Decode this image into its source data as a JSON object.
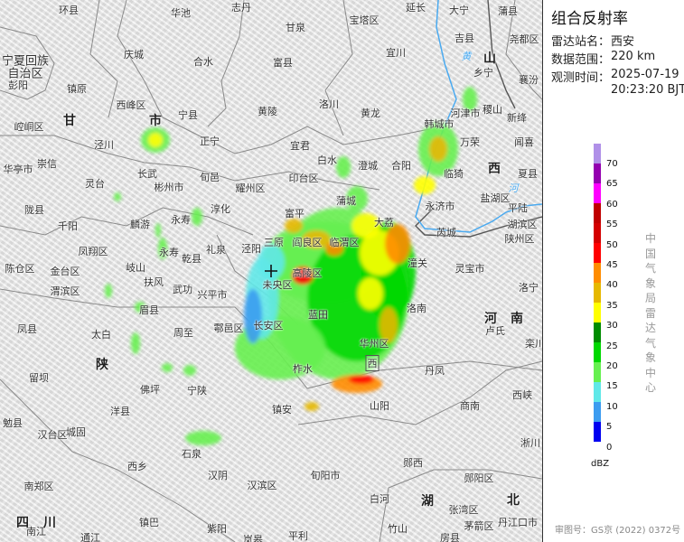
{
  "panel": {
    "title": "组合反射率",
    "station_label": "雷达站名：",
    "station": "西安",
    "range_label": "数据范围：",
    "range": "220 km",
    "time_label": "观测时间：",
    "date": "2025-07-19",
    "time": "20:23:20 BJT",
    "legend": {
      "unit": "dBZ",
      "ticks": [
        "70",
        "65",
        "60",
        "55",
        "50",
        "45",
        "40",
        "35",
        "30",
        "25",
        "20",
        "15",
        "10",
        "5",
        "0"
      ],
      "colors": [
        "#b090e8",
        "#9400b0",
        "#ff00ff",
        "#c00000",
        "#d40000",
        "#ff0000",
        "#ff8c00",
        "#e6b800",
        "#ffff00",
        "#008c00",
        "#00d800",
        "#66f050",
        "#60e8e8",
        "#3c9cf0",
        "#0000f0"
      ]
    },
    "credit": "中国气象局雷达气象中心",
    "map_review_number": "审图号：GS京 (2022) 0372号"
  },
  "map": {
    "radar_site_icon": "crosshair-icon",
    "river_color": "#4aaaf0",
    "labels": [
      "环县",
      "华池",
      "志丹",
      "延长",
      "大宁",
      "蒲县",
      "甘泉",
      "宝塔区",
      "庆城",
      "合水",
      "吉县",
      "尧都区",
      "富县",
      "宜川",
      "彭阳",
      "镇原",
      "乡宁",
      "襄汾",
      "西峰区",
      "宁县",
      "黄陵",
      "洛川",
      "黄龙",
      "稷山",
      "新绛",
      "崆峒区",
      "正宁",
      "泾川",
      "宜君",
      "韩城市",
      "河津市",
      "万荣",
      "闻喜",
      "华亭市",
      "崇信",
      "长武",
      "旬邑",
      "耀州区",
      "印台区",
      "白水",
      "澄城",
      "合阳",
      "临猗",
      "夏县",
      "灵台",
      "彬州市",
      "盐湖区",
      "陇县",
      "淳化",
      "永寿",
      "蒲城",
      "富平",
      "永济市",
      "平陆",
      "千阳",
      "麟游",
      "大荔",
      "湖滨区",
      "凤翔区",
      "永寿",
      "乾县",
      "礼泉",
      "泾阳",
      "三原",
      "阎良区",
      "临渭区",
      "芮城",
      "陕州区",
      "潼关",
      "陈仓区",
      "金台区",
      "岐山",
      "扶风",
      "武功",
      "兴平市",
      "未央区",
      "高陵区",
      "灵宝市",
      "渭滨区",
      "洛南",
      "洛宁",
      "蓝田",
      "长安区",
      "鄠邑区",
      "眉县",
      "周至",
      "凤县",
      "太白",
      "卢氏",
      "栾川",
      "华州区",
      "柞水",
      "丹凤",
      "留坝",
      "佛坪",
      "宁陕",
      "镇安",
      "山阳",
      "商南",
      "西峡",
      "洋县",
      "勉县",
      "汉台区",
      "城固",
      "石泉",
      "淅川",
      "郧西",
      "西乡",
      "汉阴",
      "汉滨区",
      "旬阳市",
      "郧阳区",
      "南郑区",
      "白河",
      "张湾区",
      "南江",
      "镇巴",
      "紫阳",
      "竹山",
      "茅箭区",
      "丹江口市",
      "平利",
      "房县",
      "通江",
      "岚皋"
    ],
    "regions": [
      "宁夏回族",
      "自治区"
    ],
    "provinces": [
      "甘",
      "山",
      "西",
      "陕",
      "河",
      "南",
      "湖",
      "北",
      "四",
      "川",
      "市",
      "黄",
      "河"
    ],
    "city_box": "西"
  }
}
